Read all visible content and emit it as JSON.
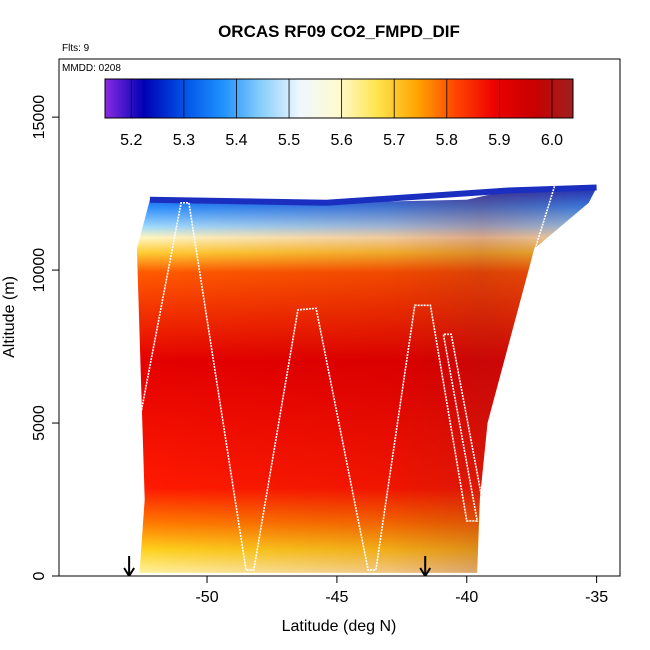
{
  "chart_data": {
    "type": "heatmap",
    "title": "ORCAS RF09 CO2_FMPD_DIF",
    "flts_label": "Flts: 9",
    "mmdd_label": "MMDD: 0208",
    "xlabel": "Latitude (deg N)",
    "ylabel": "Altitude (m)",
    "xlim": [
      -55.7,
      -34.1
    ],
    "ylim": [
      0,
      16900
    ],
    "xticks": [
      {
        "value": -50,
        "label": "-50"
      },
      {
        "value": -45,
        "label": "-45"
      },
      {
        "value": -40,
        "label": "-40"
      },
      {
        "value": -35,
        "label": "-35"
      }
    ],
    "yticks": [
      {
        "value": 0,
        "label": "0"
      },
      {
        "value": 5000,
        "label": "5000"
      },
      {
        "value": 10000,
        "label": "10000"
      },
      {
        "value": 15000,
        "label": "15000"
      }
    ],
    "colorbar": {
      "min": 5.15,
      "max": 6.04,
      "ticks": [
        {
          "value": 5.2,
          "label": "5.2"
        },
        {
          "value": 5.3,
          "label": "5.3"
        },
        {
          "value": 5.4,
          "label": "5.4"
        },
        {
          "value": 5.5,
          "label": "5.5"
        },
        {
          "value": 5.6,
          "label": "5.6"
        },
        {
          "value": 5.7,
          "label": "5.7"
        },
        {
          "value": 5.8,
          "label": "5.8"
        },
        {
          "value": 5.9,
          "label": "5.9"
        },
        {
          "value": 6.0,
          "label": "6.0"
        }
      ],
      "colors": [
        "#8a2be2",
        "#0000b4",
        "#0050e6",
        "#1e90ff",
        "#87cefa",
        "#f0f8ff",
        "#fffacd",
        "#ffe34d",
        "#ffa500",
        "#ff4500",
        "#ee0000",
        "#c80000",
        "#a02020"
      ]
    },
    "field_polygon": [
      [
        -52.6,
        100
      ],
      [
        -52.4,
        2500
      ],
      [
        -52.7,
        10700
      ],
      [
        -52.2,
        12300
      ],
      [
        -50.0,
        12300
      ],
      [
        -45.4,
        12200
      ],
      [
        -40.0,
        12300
      ],
      [
        -38.4,
        12600
      ],
      [
        -35.0,
        12700
      ],
      [
        -35.3,
        12200
      ],
      [
        -37.4,
        10700
      ],
      [
        -39.2,
        5000
      ],
      [
        -39.5,
        2500
      ],
      [
        -39.6,
        100
      ]
    ],
    "upper_boundary": [
      [
        -52.2,
        12300
      ],
      [
        -45.4,
        12200
      ],
      [
        -38.4,
        12600
      ],
      [
        -35.0,
        12700
      ]
    ],
    "flight_track": [
      [
        -53.0,
        3300
      ],
      [
        -51.0,
        12200
      ],
      [
        -50.7,
        12200
      ],
      [
        -48.5,
        200
      ],
      [
        -48.2,
        200
      ],
      [
        -46.5,
        8700
      ],
      [
        -45.8,
        8750
      ],
      [
        -43.8,
        200
      ],
      [
        -43.5,
        200
      ],
      [
        -42.0,
        8850
      ],
      [
        -41.4,
        8850
      ],
      [
        -40.0,
        1800
      ],
      [
        -39.6,
        1800
      ],
      [
        -40.9,
        7900
      ],
      [
        -40.6,
        7900
      ],
      [
        -38.9,
        200
      ],
      [
        -38.3,
        200
      ],
      [
        -37.4,
        10600
      ],
      [
        -36.6,
        12800
      ],
      [
        -34.8,
        12900
      ]
    ],
    "markers": [
      {
        "x": -53.0,
        "label": "down-arrow"
      },
      {
        "x": -41.6,
        "label": "down-arrow"
      }
    ]
  }
}
